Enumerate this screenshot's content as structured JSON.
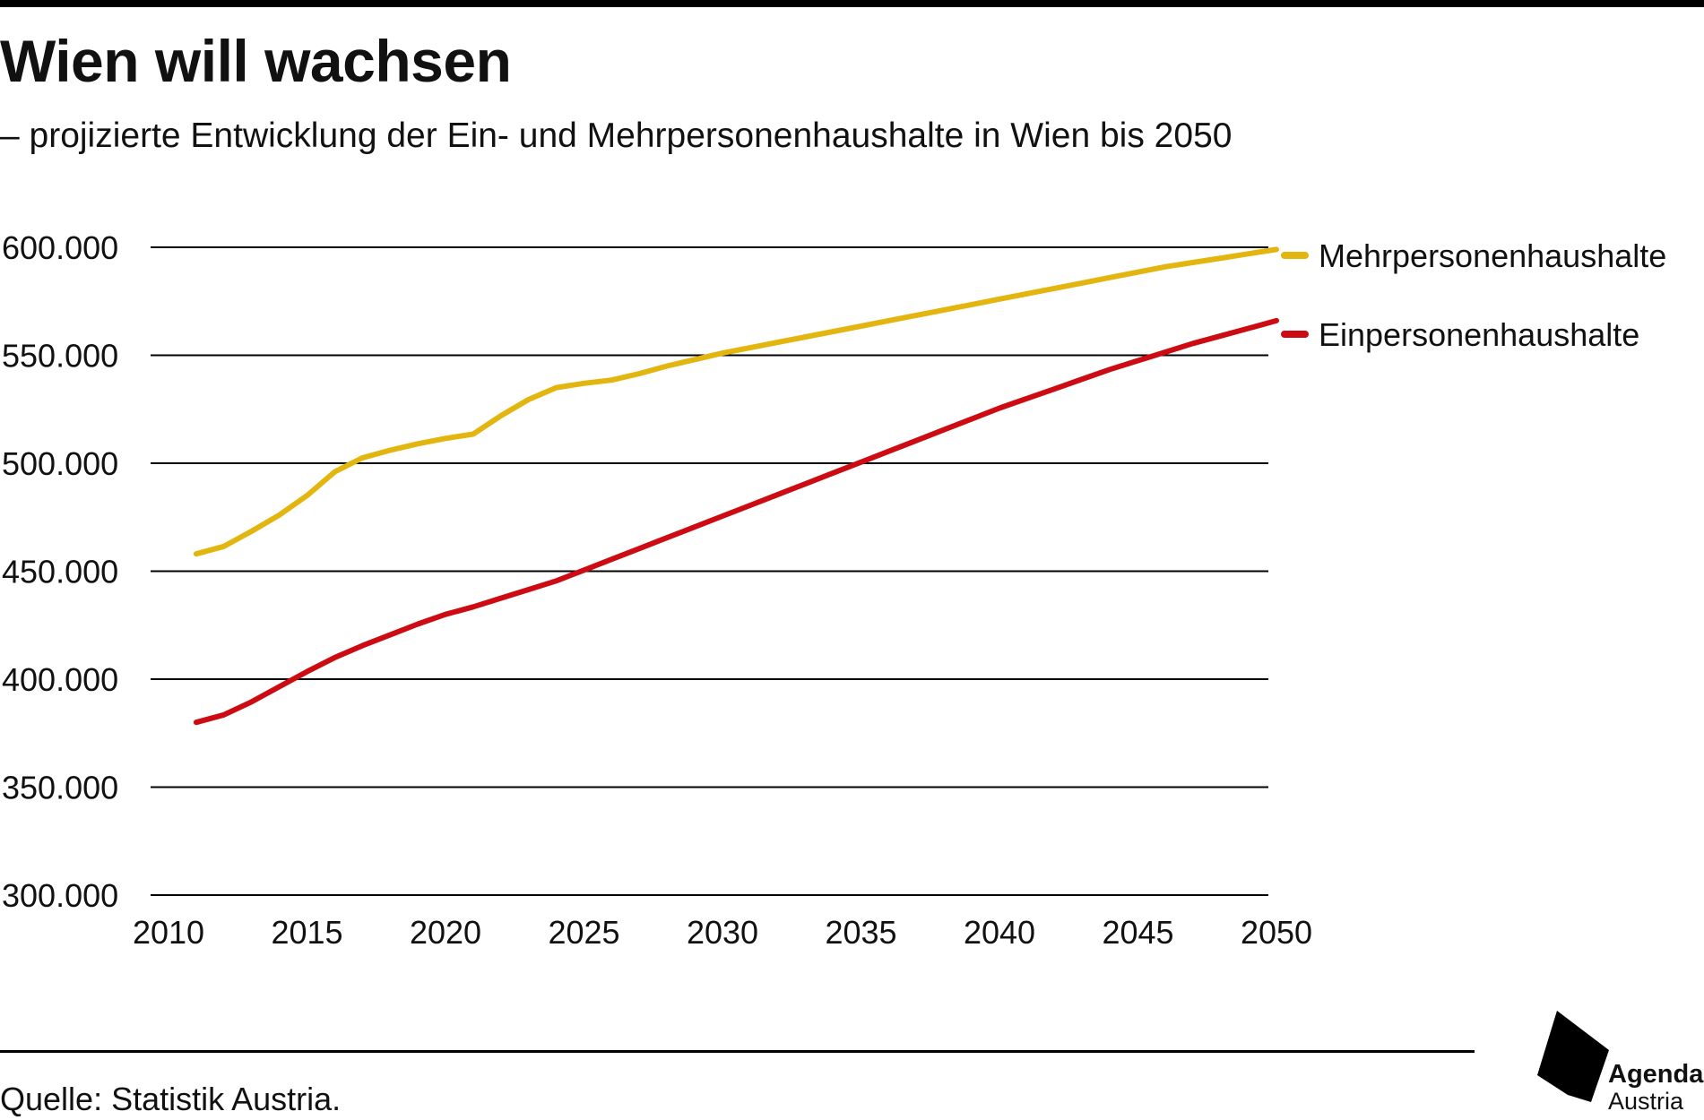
{
  "header": {
    "title": "Wien will wachsen",
    "subtitle": "– projizierte Entwicklung der Ein- und Mehrpersonenhaushalte in Wien bis 2050"
  },
  "footer": {
    "source": "Quelle: Statistik Austria.",
    "logo_line1": "Agenda",
    "logo_line2": "Austria"
  },
  "colors": {
    "mehrpersonen": "#e2b50f",
    "einpersonen": "#cc0c12",
    "gridline": "#000000"
  },
  "chart_data": {
    "type": "line",
    "title": "Wien will wachsen",
    "subtitle": "– projizierte Entwicklung der Ein- und Mehrpersonenhaushalte in Wien bis 2050",
    "xlabel": "",
    "ylabel": "",
    "xlim": [
      2010,
      2050
    ],
    "ylim": [
      300000,
      600000
    ],
    "x_ticks": [
      2010,
      2015,
      2020,
      2025,
      2030,
      2035,
      2040,
      2045,
      2050
    ],
    "x_tick_labels": [
      "2010",
      "2015",
      "2020",
      "2025",
      "2030",
      "2035",
      "2040",
      "2045",
      "2050"
    ],
    "y_ticks": [
      300000,
      350000,
      400000,
      450000,
      500000,
      550000,
      600000
    ],
    "y_tick_labels": [
      "300.000",
      "350.000",
      "400.000",
      "450.000",
      "500.000",
      "550.000",
      "600.000"
    ],
    "grid": "horizontal",
    "legend": "right",
    "x": [
      2011,
      2012,
      2013,
      2014,
      2015,
      2016,
      2017,
      2018,
      2019,
      2020,
      2021,
      2022,
      2023,
      2024,
      2025,
      2026,
      2027,
      2028,
      2029,
      2030,
      2031,
      2032,
      2033,
      2034,
      2035,
      2036,
      2037,
      2038,
      2039,
      2040,
      2041,
      2042,
      2043,
      2044,
      2045,
      2046,
      2047,
      2048,
      2049,
      2050
    ],
    "series": [
      {
        "name": "Mehrpersonenhaushalte",
        "color": "#e2b50f",
        "values": [
          458000,
          461500,
          468500,
          476000,
          485000,
          496000,
          502500,
          506000,
          509000,
          511500,
          513500,
          522000,
          529500,
          535000,
          537000,
          538500,
          541500,
          545000,
          548000,
          551000,
          553500,
          556000,
          558500,
          561000,
          563500,
          566000,
          568500,
          571000,
          573500,
          576000,
          578500,
          581000,
          583500,
          586000,
          588500,
          591000,
          593000,
          595000,
          597000,
          599000
        ]
      },
      {
        "name": "Einpersonenhaushalte",
        "color": "#cc0c12",
        "values": [
          380000,
          383500,
          389500,
          396500,
          403500,
          410000,
          415500,
          420500,
          425500,
          430000,
          433500,
          437500,
          441500,
          445500,
          450500,
          455500,
          460500,
          465500,
          470500,
          475500,
          480500,
          485500,
          490500,
          495500,
          500500,
          505500,
          510500,
          515500,
          520500,
          525500,
          530000,
          534500,
          539000,
          543500,
          547500,
          551500,
          555500,
          559000,
          562500,
          566000
        ]
      }
    ]
  }
}
